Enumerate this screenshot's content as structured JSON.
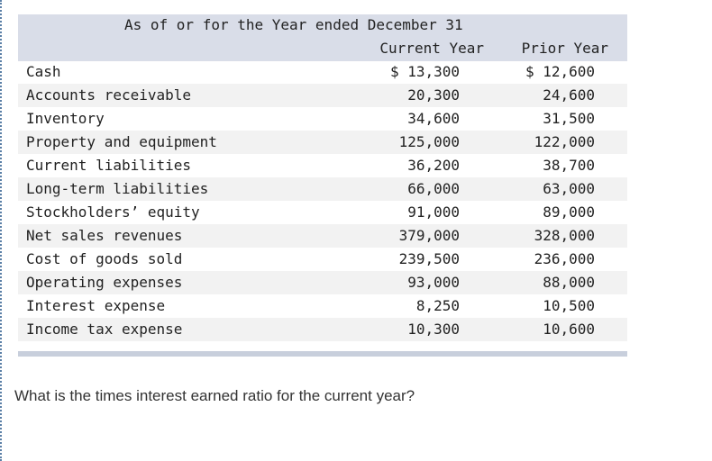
{
  "table": {
    "caption": "As of or for the Year ended December 31",
    "columns": [
      "Current Year",
      "Prior Year"
    ],
    "rows": [
      [
        "Cash",
        "$ 13,300",
        "$ 12,600"
      ],
      [
        "Accounts receivable",
        "20,300",
        "24,600"
      ],
      [
        "Inventory",
        "34,600",
        "31,500"
      ],
      [
        "Property and equipment",
        "125,000",
        "122,000"
      ],
      [
        "Current liabilities",
        "36,200",
        "38,700"
      ],
      [
        "Long-term liabilities",
        "66,000",
        "63,000"
      ],
      [
        "Stockholders’ equity",
        "91,000",
        "89,000"
      ],
      [
        "Net sales revenues",
        "379,000",
        "328,000"
      ],
      [
        "Cost of goods sold",
        "239,500",
        "236,000"
      ],
      [
        "Operating expenses",
        "93,000",
        "88,000"
      ],
      [
        "Interest expense",
        "8,250",
        "10,500"
      ],
      [
        "Income tax expense",
        "10,300",
        "10,600"
      ]
    ]
  },
  "question": "What is the times interest earned ratio for the current year?"
}
